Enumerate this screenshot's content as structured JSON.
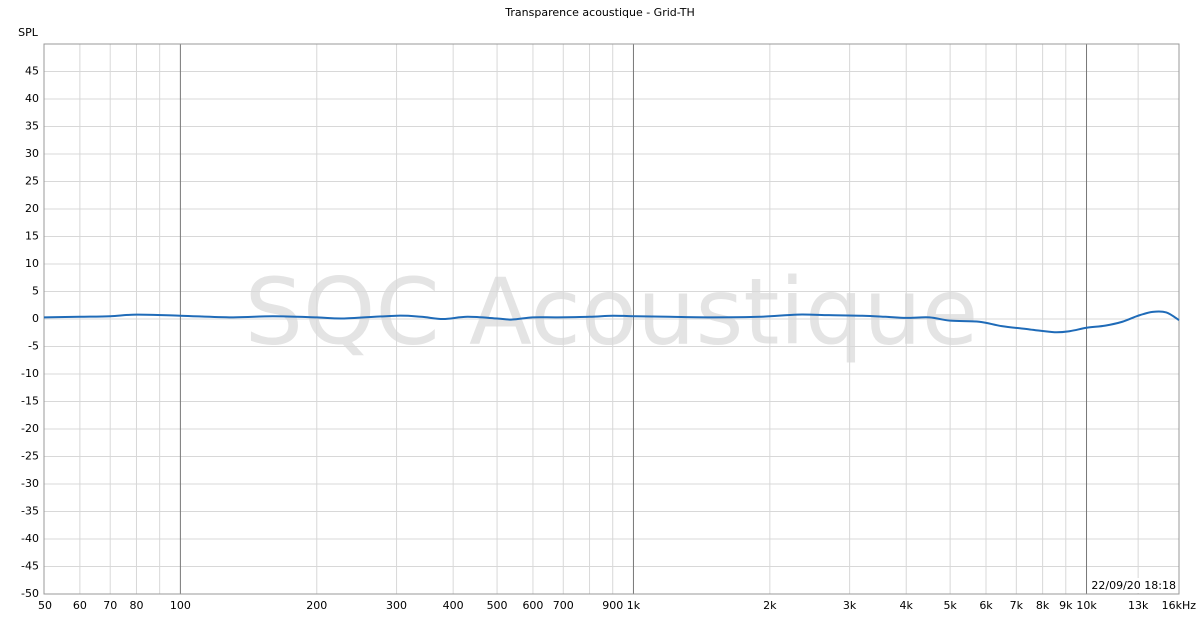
{
  "chart_data": {
    "type": "line",
    "title": "Transparence acoustique - Grid-TH",
    "ylabel": "SPL",
    "watermark": "SQC Acoustique",
    "timestamp": "22/09/20 18:18",
    "xscale": "log",
    "xlim": [
      50,
      16000
    ],
    "ylim": [
      -50,
      50
    ],
    "xticks": [
      50,
      60,
      70,
      80,
      {
        "value": 90,
        "label": null
      },
      100,
      200,
      300,
      400,
      500,
      600,
      700,
      {
        "value": 800,
        "label": null
      },
      900,
      {
        "value": 1000,
        "label": "1k"
      },
      {
        "value": 2000,
        "label": "2k"
      },
      {
        "value": 3000,
        "label": "3k"
      },
      {
        "value": 4000,
        "label": "4k"
      },
      {
        "value": 5000,
        "label": "5k"
      },
      {
        "value": 6000,
        "label": "6k"
      },
      {
        "value": 7000,
        "label": "7k"
      },
      {
        "value": 8000,
        "label": "8k"
      },
      {
        "value": 9000,
        "label": "9k"
      },
      {
        "value": 10000,
        "label": "10k"
      },
      {
        "value": 13000,
        "label": "13k"
      },
      {
        "value": 16000,
        "label": "16kHz"
      }
    ],
    "yticks": [
      -50,
      -45,
      -40,
      -35,
      -30,
      -25,
      -20,
      -15,
      -10,
      -5,
      0,
      5,
      10,
      15,
      20,
      25,
      30,
      35,
      40,
      45
    ],
    "grid": true,
    "series": [
      {
        "color": "#1f6bb8",
        "x": [
          50,
          60,
          70,
          80,
          100,
          130,
          160,
          200,
          230,
          300,
          340,
          380,
          430,
          500,
          540,
          600,
          680,
          800,
          900,
          1000,
          1200,
          1500,
          1900,
          2300,
          2700,
          3200,
          3600,
          4000,
          4500,
          5000,
          5800,
          6500,
          7500,
          8500,
          9200,
          10000,
          11000,
          12000,
          13000,
          14000,
          15000,
          16000
        ],
        "values": [
          0.3,
          0.4,
          0.5,
          0.8,
          0.6,
          0.3,
          0.5,
          0.3,
          0.1,
          0.6,
          0.4,
          0,
          0.4,
          0.1,
          -0.1,
          0.3,
          0.3,
          0.4,
          0.6,
          0.5,
          0.4,
          0.3,
          0.4,
          0.8,
          0.7,
          0.6,
          0.4,
          0.2,
          0.3,
          -0.3,
          -0.5,
          -1.3,
          -1.9,
          -2.4,
          -2.2,
          -1.6,
          -1.2,
          -0.5,
          0.6,
          1.3,
          1.2,
          -0.2
        ]
      }
    ]
  }
}
